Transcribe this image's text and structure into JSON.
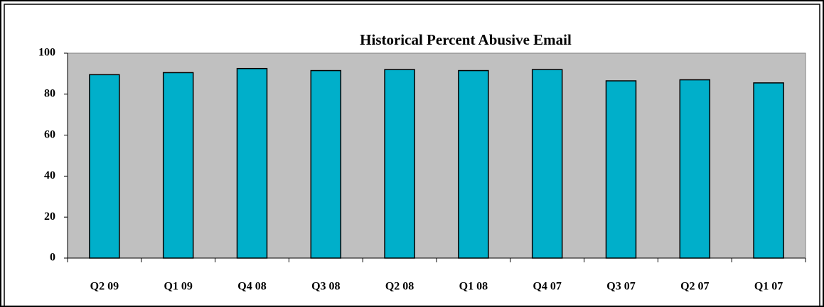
{
  "chart_data": {
    "type": "bar",
    "title": "Historical Percent Abusive Email",
    "categories": [
      "Q2 09",
      "Q1 09",
      "Q4 08",
      "Q3 08",
      "Q2 08",
      "Q1 08",
      "Q4 07",
      "Q3 07",
      "Q2 07",
      "Q1 07"
    ],
    "values": [
      89.5,
      90.5,
      92.5,
      91.5,
      92,
      91.5,
      92,
      86.5,
      87,
      85.5
    ],
    "color": "#00afca",
    "ylim": [
      0,
      100
    ],
    "yticks": [
      0,
      20,
      40,
      60,
      80,
      100
    ],
    "grid": false
  }
}
